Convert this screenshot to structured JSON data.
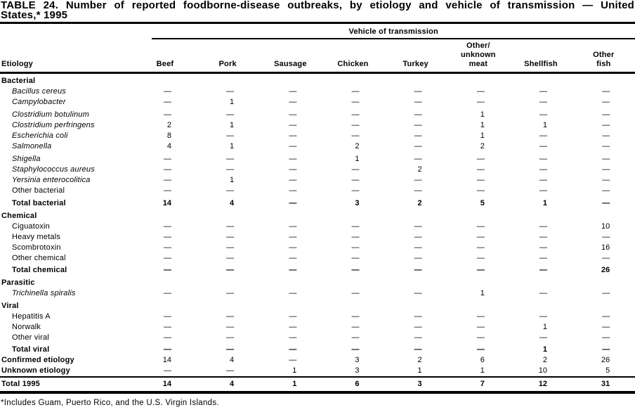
{
  "title": {
    "line1": "TABLE 24. Number of reported foodborne-disease outbreaks, by etiology and vehicle of transmission — United",
    "line2": "States,* 1995"
  },
  "table": {
    "spanner": "Vehicle of transmission",
    "row_header": "Etiology",
    "columns": [
      {
        "id": "beef",
        "lines": [
          "Beef"
        ]
      },
      {
        "id": "pork",
        "lines": [
          "Pork"
        ]
      },
      {
        "id": "sausage",
        "lines": [
          "Sausage"
        ]
      },
      {
        "id": "chicken",
        "lines": [
          "Chicken"
        ]
      },
      {
        "id": "turkey",
        "lines": [
          "Turkey"
        ]
      },
      {
        "id": "other-unknown-meat",
        "lines": [
          "Other/",
          "unknown",
          "meat"
        ]
      },
      {
        "id": "shellfish",
        "lines": [
          "Shellfish"
        ]
      },
      {
        "id": "other-fish",
        "lines": [
          "Other",
          "fish"
        ]
      }
    ],
    "rows": [
      {
        "label": "Bacterial",
        "type": "section",
        "values": [
          "",
          "",
          "",
          "",
          "",
          "",
          "",
          ""
        ]
      },
      {
        "label": "Bacillus cereus",
        "type": "species",
        "values": [
          "—",
          "—",
          "—",
          "—",
          "—",
          "—",
          "—",
          "—"
        ]
      },
      {
        "label": "Campylobacter",
        "type": "species",
        "values": [
          "—",
          "1",
          "—",
          "—",
          "—",
          "—",
          "—",
          "—"
        ]
      },
      {
        "label": "Clostridium botulinum",
        "type": "species",
        "gap": true,
        "values": [
          "—",
          "—",
          "—",
          "—",
          "—",
          "1",
          "—",
          "—"
        ]
      },
      {
        "label": "Clostridium perfringens",
        "type": "species",
        "values": [
          "2",
          "1",
          "—",
          "—",
          "—",
          "1",
          "1",
          "—"
        ]
      },
      {
        "label": "Escherichia coli",
        "type": "species",
        "values": [
          "8",
          "—",
          "—",
          "—",
          "—",
          "1",
          "—",
          "—"
        ]
      },
      {
        "label": "Salmonella",
        "type": "species",
        "values": [
          "4",
          "1",
          "—",
          "2",
          "—",
          "2",
          "—",
          "—"
        ]
      },
      {
        "label": "Shigella",
        "type": "species",
        "gap": true,
        "values": [
          "—",
          "—",
          "—",
          "1",
          "—",
          "—",
          "—",
          "—"
        ]
      },
      {
        "label": "Staphylococcus aureus",
        "type": "species",
        "values": [
          "—",
          "—",
          "—",
          "—",
          "2",
          "—",
          "—",
          "—"
        ]
      },
      {
        "label": "Yersinia enterocolitica",
        "type": "species",
        "values": [
          "—",
          "1",
          "—",
          "—",
          "—",
          "—",
          "—",
          "—"
        ]
      },
      {
        "label": "Other bacterial",
        "type": "item",
        "values": [
          "—",
          "—",
          "—",
          "—",
          "—",
          "—",
          "—",
          "—"
        ]
      },
      {
        "label": "Total bacterial",
        "type": "total",
        "gap": true,
        "values": [
          "14",
          "4",
          "—",
          "3",
          "2",
          "5",
          "1",
          "—"
        ]
      },
      {
        "label": "Chemical",
        "type": "section",
        "values": [
          "",
          "",
          "",
          "",
          "",
          "",
          "",
          ""
        ]
      },
      {
        "label": "Ciguatoxin",
        "type": "item",
        "values": [
          "—",
          "—",
          "—",
          "—",
          "—",
          "—",
          "—",
          "10"
        ]
      },
      {
        "label": "Heavy metals",
        "type": "item",
        "values": [
          "—",
          "—",
          "—",
          "—",
          "—",
          "—",
          "—",
          "—"
        ]
      },
      {
        "label": "Scombrotoxin",
        "type": "item",
        "values": [
          "—",
          "—",
          "—",
          "—",
          "—",
          "—",
          "—",
          "16"
        ]
      },
      {
        "label": "Other chemical",
        "type": "item",
        "values": [
          "—",
          "—",
          "—",
          "—",
          "—",
          "—",
          "—",
          "—"
        ]
      },
      {
        "label": "Total chemical",
        "type": "total",
        "values": [
          "—",
          "—",
          "—",
          "—",
          "—",
          "—",
          "—",
          "26"
        ]
      },
      {
        "label": "Parasitic",
        "type": "section",
        "values": [
          "",
          "",
          "",
          "",
          "",
          "",
          "",
          ""
        ]
      },
      {
        "label": "Trichinella spiralis",
        "type": "species",
        "values": [
          "—",
          "—",
          "—",
          "—",
          "—",
          "1",
          "—",
          "—"
        ]
      },
      {
        "label": "Viral",
        "type": "section",
        "values": [
          "",
          "",
          "",
          "",
          "",
          "",
          "",
          ""
        ]
      },
      {
        "label": "Hepatitis A",
        "type": "item",
        "values": [
          "—",
          "—",
          "—",
          "—",
          "—",
          "—",
          "—",
          "—"
        ]
      },
      {
        "label": "Norwalk",
        "type": "item",
        "values": [
          "—",
          "—",
          "—",
          "—",
          "—",
          "—",
          "1",
          "—"
        ]
      },
      {
        "label": "Other viral",
        "type": "item",
        "values": [
          "—",
          "—",
          "—",
          "—",
          "—",
          "—",
          "—",
          "—"
        ]
      },
      {
        "label": "Total viral",
        "type": "total",
        "values": [
          "—",
          "—",
          "—",
          "—",
          "—",
          "—",
          "1",
          "—"
        ]
      },
      {
        "label": "Confirmed etiology",
        "type": "summary",
        "values": [
          "14",
          "4",
          "—",
          "3",
          "2",
          "6",
          "2",
          "26"
        ]
      },
      {
        "label": "Unknown etiology",
        "type": "summary",
        "values": [
          "—",
          "—",
          "1",
          "3",
          "1",
          "1",
          "10",
          "5"
        ]
      },
      {
        "label": "Total 1995",
        "type": "grand",
        "values": [
          "14",
          "4",
          "1",
          "6",
          "3",
          "7",
          "12",
          "31"
        ]
      }
    ]
  },
  "footnote": "*Includes Guam, Puerto Rico, and the U.S. Virgin Islands."
}
